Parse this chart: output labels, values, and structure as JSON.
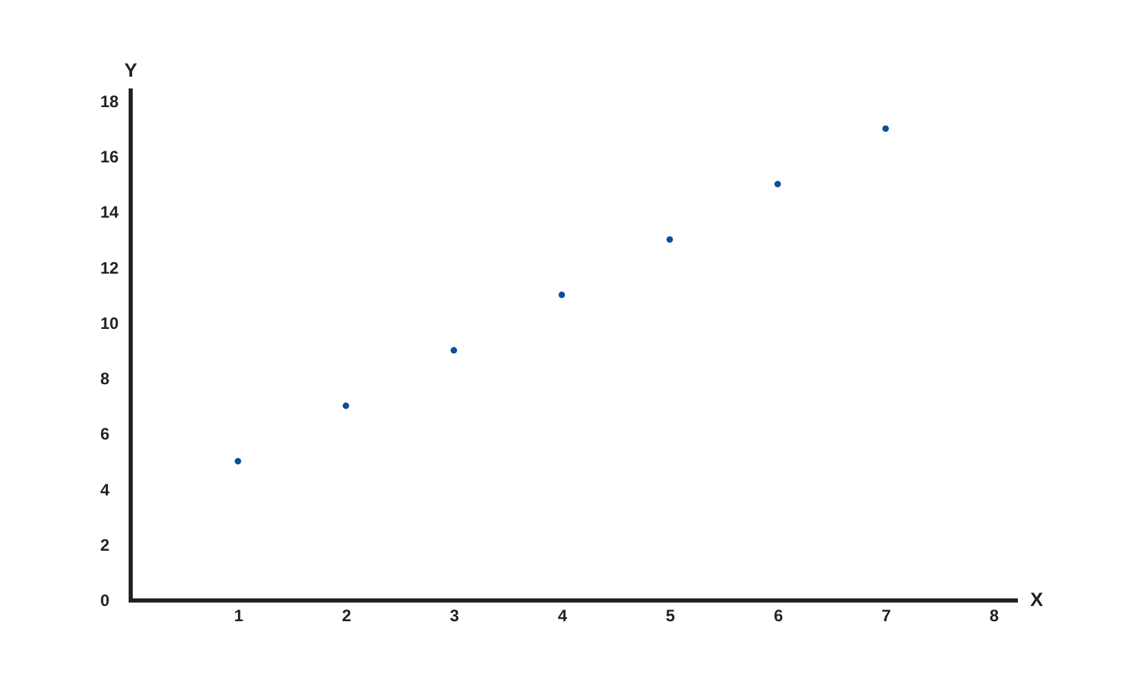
{
  "chart_data": {
    "type": "scatter",
    "xlabel": "X",
    "ylabel": "Y",
    "x": [
      1,
      2,
      3,
      4,
      5,
      6,
      7
    ],
    "values": [
      5,
      7,
      9,
      11,
      13,
      15,
      17
    ],
    "color": "#0b4f9e",
    "marker": "circle",
    "xlim": [
      0,
      8.2
    ],
    "ylim": [
      0,
      18.4
    ],
    "xticks": [
      1,
      2,
      3,
      4,
      5,
      6,
      7,
      8
    ],
    "yticks": [
      0,
      2,
      4,
      6,
      8,
      10,
      12,
      14,
      16,
      18
    ],
    "grid": false,
    "legend": false
  }
}
